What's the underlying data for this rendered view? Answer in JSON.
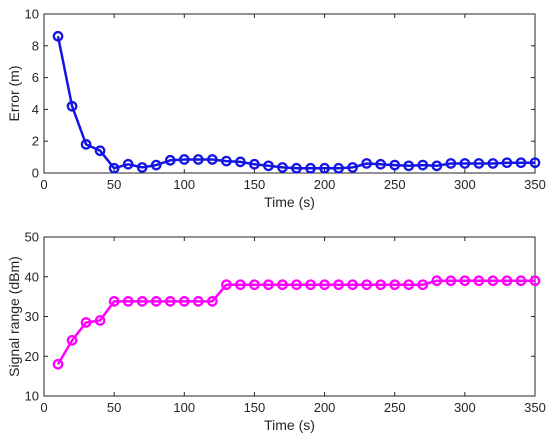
{
  "chart_data": [
    {
      "type": "line",
      "title": "",
      "xlabel": "Time (s)",
      "ylabel": "Error (m)",
      "xlim": [
        0,
        350
      ],
      "ylim": [
        0,
        10
      ],
      "xticks": [
        0,
        50,
        100,
        150,
        200,
        250,
        300,
        350
      ],
      "yticks": [
        0,
        2,
        4,
        6,
        8,
        10
      ],
      "grid": false,
      "color": "#1414e6",
      "marker": "circle",
      "x": [
        10,
        20,
        30,
        40,
        50,
        60,
        70,
        80,
        90,
        100,
        110,
        120,
        130,
        140,
        150,
        160,
        170,
        180,
        190,
        200,
        210,
        220,
        230,
        240,
        250,
        260,
        270,
        280,
        290,
        300,
        310,
        320,
        330,
        340,
        350
      ],
      "y": [
        8.6,
        4.2,
        1.8,
        1.4,
        0.3,
        0.55,
        0.35,
        0.5,
        0.8,
        0.85,
        0.85,
        0.85,
        0.75,
        0.7,
        0.55,
        0.45,
        0.35,
        0.3,
        0.3,
        0.3,
        0.3,
        0.35,
        0.6,
        0.55,
        0.5,
        0.45,
        0.5,
        0.45,
        0.6,
        0.6,
        0.6,
        0.6,
        0.65,
        0.65,
        0.65
      ]
    },
    {
      "type": "line",
      "title": "",
      "xlabel": "Time (s)",
      "ylabel": "Signal range (dBm)",
      "xlim": [
        0,
        350
      ],
      "ylim": [
        10,
        50
      ],
      "xticks": [
        0,
        50,
        100,
        150,
        200,
        250,
        300,
        350
      ],
      "yticks": [
        10,
        20,
        30,
        40,
        50
      ],
      "grid": false,
      "color": "#ff00ff",
      "marker": "circle",
      "x": [
        10,
        20,
        30,
        40,
        50,
        60,
        70,
        80,
        90,
        100,
        110,
        120,
        130,
        140,
        150,
        160,
        170,
        180,
        190,
        200,
        210,
        220,
        230,
        240,
        250,
        260,
        270,
        280,
        290,
        300,
        310,
        320,
        330,
        340,
        350
      ],
      "y": [
        18,
        24,
        28.5,
        29,
        33.8,
        33.8,
        33.8,
        33.8,
        33.8,
        33.8,
        33.8,
        33.8,
        38,
        38,
        38,
        38,
        38,
        38,
        38,
        38,
        38,
        38,
        38,
        38,
        38,
        38,
        38,
        39,
        39,
        39,
        39,
        39,
        39,
        39,
        39
      ]
    }
  ]
}
